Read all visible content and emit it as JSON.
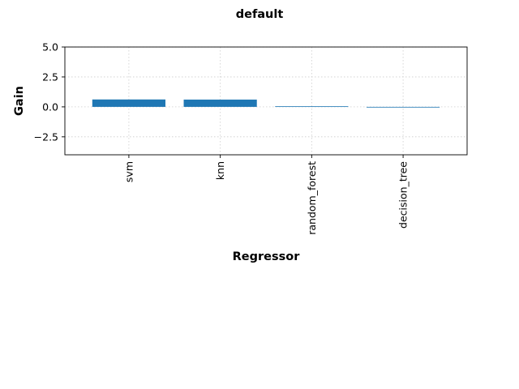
{
  "chart_data": {
    "type": "bar",
    "title": "default",
    "xlabel": "Regressor",
    "ylabel": "Gain",
    "categories": [
      "svm",
      "knn",
      "random_forest",
      "decision_tree"
    ],
    "values": [
      0.62,
      0.61,
      0.05,
      -0.04
    ],
    "ylim": [
      -4.0,
      5.0
    ],
    "yticks": [
      -2.5,
      0.0,
      2.5,
      5.0
    ],
    "ytick_labels": [
      "−2.5",
      "0.0",
      "2.5",
      "5.0"
    ],
    "grid": true,
    "bar_color": "#1f77b4"
  }
}
